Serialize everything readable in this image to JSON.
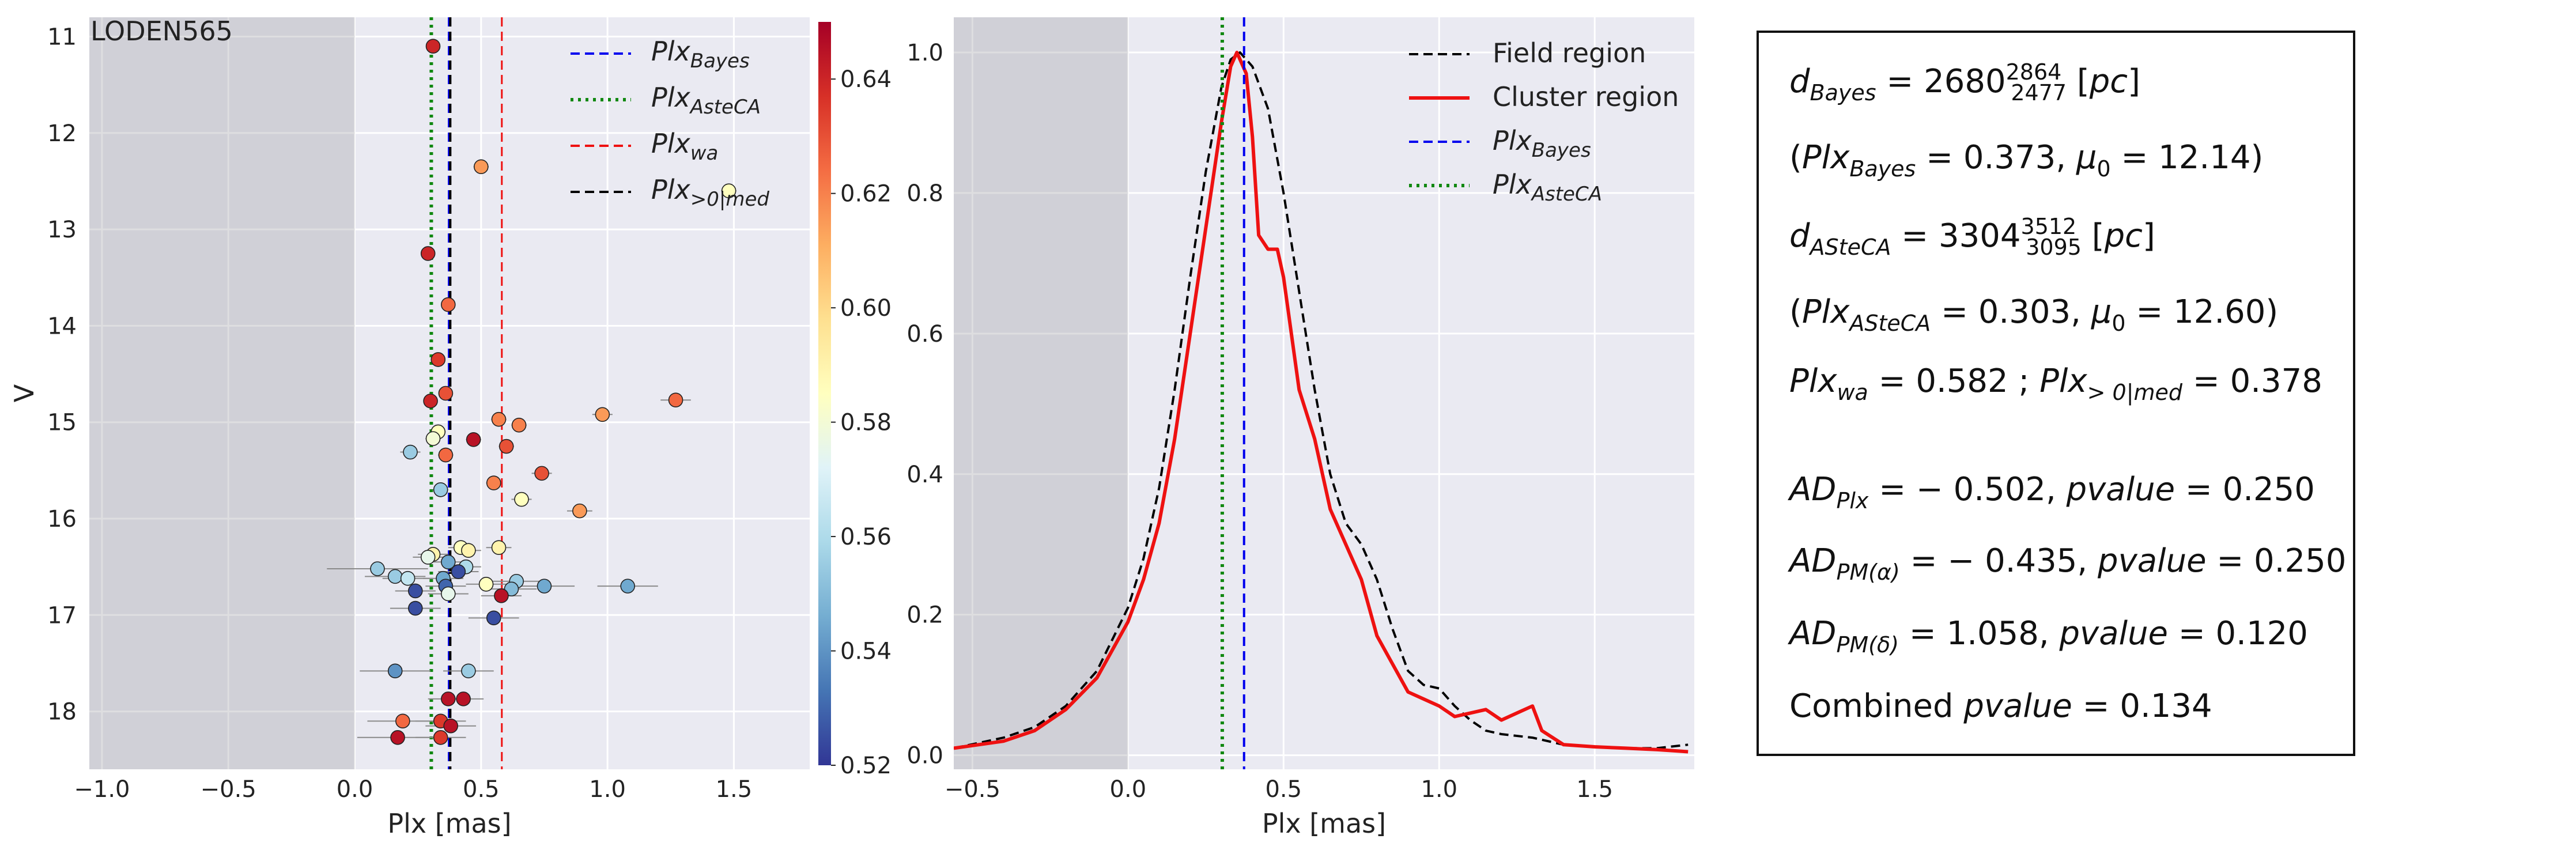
{
  "chart_data": [
    {
      "type": "scatter",
      "title": "LODEN565",
      "xlabel": "Plx [mas]",
      "ylabel": "V",
      "xlim": [
        -1.05,
        1.8
      ],
      "ylim": [
        18.6,
        10.8
      ],
      "xticks": [
        "−1.0",
        "−0.5",
        "0.0",
        "0.5",
        "1.0",
        "1.5"
      ],
      "xtick_values": [
        -1.0,
        -0.5,
        0.0,
        0.5,
        1.0,
        1.5
      ],
      "yticks": [
        "11",
        "12",
        "13",
        "14",
        "15",
        "16",
        "17",
        "18"
      ],
      "ytick_values": [
        11,
        12,
        13,
        14,
        15,
        16,
        17,
        18
      ],
      "shaded_region_x": [
        -1.05,
        0.0
      ],
      "grid": true,
      "vlines": [
        {
          "name": "Plx_Bayes",
          "x": 0.373,
          "style": "dashed",
          "color": "#0000ee"
        },
        {
          "name": "Plx_AsteCA",
          "x": 0.303,
          "style": "dotted",
          "color": "#118811"
        },
        {
          "name": "Plx_wa",
          "x": 0.582,
          "style": "dashed",
          "color": "#ee1111"
        },
        {
          "name": "Plx_>0|med",
          "x": 0.378,
          "style": "dashed",
          "color": "#000000"
        }
      ],
      "legend": [
        {
          "base": "Plx",
          "sub": "Bayes",
          "style": "dashed",
          "color": "#0000ee"
        },
        {
          "base": "Plx",
          "sub": "AsteCA",
          "style": "dotted",
          "color": "#118811"
        },
        {
          "base": "Plx",
          "sub": "wa",
          "style": "dashed",
          "color": "#ee1111"
        },
        {
          "base": "Plx",
          "sub": ">0|med",
          "style": "dashed",
          "color": "#000000"
        }
      ],
      "legend_position": "upper-right",
      "colorbar": {
        "min": 0.52,
        "max": 0.65,
        "ticks": [
          "0.52",
          "0.54",
          "0.56",
          "0.58",
          "0.60",
          "0.62",
          "0.64"
        ],
        "tick_values": [
          0.52,
          0.54,
          0.56,
          0.58,
          0.6,
          0.62,
          0.64
        ],
        "colormap": "RdYlBu_r"
      },
      "points": [
        {
          "x": 0.31,
          "y": 11.1,
          "c": 0.64,
          "xerr": 0.02
        },
        {
          "x": 0.5,
          "y": 12.35,
          "c": 0.615,
          "xerr": 0.03
        },
        {
          "x": 1.48,
          "y": 12.6,
          "c": 0.585,
          "xerr": 0.03
        },
        {
          "x": 0.29,
          "y": 13.25,
          "c": 0.64,
          "xerr": 0.02
        },
        {
          "x": 0.37,
          "y": 13.78,
          "c": 0.625,
          "xerr": 0.02
        },
        {
          "x": 0.33,
          "y": 14.35,
          "c": 0.635,
          "xerr": 0.02
        },
        {
          "x": 0.36,
          "y": 14.7,
          "c": 0.63,
          "xerr": 0.02
        },
        {
          "x": 0.3,
          "y": 14.78,
          "c": 0.64,
          "xerr": 0.02
        },
        {
          "x": 0.57,
          "y": 14.97,
          "c": 0.62,
          "xerr": 0.03
        },
        {
          "x": 0.98,
          "y": 14.92,
          "c": 0.615,
          "xerr": 0.04
        },
        {
          "x": 1.27,
          "y": 14.77,
          "c": 0.625,
          "xerr": 0.06
        },
        {
          "x": 0.65,
          "y": 15.03,
          "c": 0.62,
          "xerr": 0.03
        },
        {
          "x": 0.33,
          "y": 15.1,
          "c": 0.585,
          "xerr": 0.03
        },
        {
          "x": 0.31,
          "y": 15.17,
          "c": 0.58,
          "xerr": 0.03
        },
        {
          "x": 0.47,
          "y": 15.18,
          "c": 0.645,
          "xerr": 0.03
        },
        {
          "x": 0.6,
          "y": 15.25,
          "c": 0.63,
          "xerr": 0.03
        },
        {
          "x": 0.22,
          "y": 15.31,
          "c": 0.555,
          "xerr": 0.04
        },
        {
          "x": 0.36,
          "y": 15.34,
          "c": 0.625,
          "xerr": 0.03
        },
        {
          "x": 0.74,
          "y": 15.53,
          "c": 0.63,
          "xerr": 0.04
        },
        {
          "x": 0.55,
          "y": 15.63,
          "c": 0.62,
          "xerr": 0.03
        },
        {
          "x": 0.34,
          "y": 15.7,
          "c": 0.555,
          "xerr": 0.03
        },
        {
          "x": 0.66,
          "y": 15.8,
          "c": 0.585,
          "xerr": 0.04
        },
        {
          "x": 0.89,
          "y": 15.92,
          "c": 0.615,
          "xerr": 0.05
        },
        {
          "x": 0.57,
          "y": 16.3,
          "c": 0.59,
          "xerr": 0.05
        },
        {
          "x": 0.42,
          "y": 16.3,
          "c": 0.585,
          "xerr": 0.05
        },
        {
          "x": 0.45,
          "y": 16.33,
          "c": 0.59,
          "xerr": 0.05
        },
        {
          "x": 0.31,
          "y": 16.37,
          "c": 0.59,
          "xerr": 0.06
        },
        {
          "x": 0.29,
          "y": 16.4,
          "c": 0.575,
          "xerr": 0.06
        },
        {
          "x": 0.37,
          "y": 16.45,
          "c": 0.545,
          "xerr": 0.06
        },
        {
          "x": 0.44,
          "y": 16.5,
          "c": 0.56,
          "xerr": 0.06
        },
        {
          "x": 0.09,
          "y": 16.52,
          "c": 0.555,
          "xerr": 0.2
        },
        {
          "x": 0.16,
          "y": 16.6,
          "c": 0.555,
          "xerr": 0.12
        },
        {
          "x": 0.21,
          "y": 16.62,
          "c": 0.565,
          "xerr": 0.1
        },
        {
          "x": 0.35,
          "y": 16.62,
          "c": 0.545,
          "xerr": 0.08
        },
        {
          "x": 0.41,
          "y": 16.55,
          "c": 0.525,
          "xerr": 0.08
        },
        {
          "x": 0.52,
          "y": 16.68,
          "c": 0.585,
          "xerr": 0.08
        },
        {
          "x": 0.64,
          "y": 16.65,
          "c": 0.555,
          "xerr": 0.1
        },
        {
          "x": 0.36,
          "y": 16.7,
          "c": 0.53,
          "xerr": 0.08
        },
        {
          "x": 0.62,
          "y": 16.73,
          "c": 0.55,
          "xerr": 0.1
        },
        {
          "x": 0.75,
          "y": 16.7,
          "c": 0.545,
          "xerr": 0.12
        },
        {
          "x": 1.08,
          "y": 16.7,
          "c": 0.545,
          "xerr": 0.12
        },
        {
          "x": 0.24,
          "y": 16.75,
          "c": 0.525,
          "xerr": 0.08
        },
        {
          "x": 0.37,
          "y": 16.78,
          "c": 0.575,
          "xerr": 0.08
        },
        {
          "x": 0.58,
          "y": 16.8,
          "c": 0.645,
          "xerr": 0.08
        },
        {
          "x": 0.24,
          "y": 16.93,
          "c": 0.525,
          "xerr": 0.1
        },
        {
          "x": 0.55,
          "y": 17.03,
          "c": 0.525,
          "xerr": 0.1
        },
        {
          "x": 0.16,
          "y": 17.58,
          "c": 0.54,
          "xerr": 0.14
        },
        {
          "x": 0.45,
          "y": 17.58,
          "c": 0.555,
          "xerr": 0.1
        },
        {
          "x": 0.37,
          "y": 17.87,
          "c": 0.645,
          "xerr": 0.08
        },
        {
          "x": 0.43,
          "y": 17.87,
          "c": 0.645,
          "xerr": 0.08
        },
        {
          "x": 0.19,
          "y": 18.1,
          "c": 0.625,
          "xerr": 0.14
        },
        {
          "x": 0.34,
          "y": 18.1,
          "c": 0.635,
          "xerr": 0.1
        },
        {
          "x": 0.38,
          "y": 18.15,
          "c": 0.645,
          "xerr": 0.1
        },
        {
          "x": 0.17,
          "y": 18.27,
          "c": 0.645,
          "xerr": 0.16
        },
        {
          "x": 0.34,
          "y": 18.27,
          "c": 0.635,
          "xerr": 0.1
        }
      ]
    },
    {
      "type": "line",
      "xlabel": "Plx [mas]",
      "ylabel": "",
      "xlim": [
        -0.56,
        1.82
      ],
      "ylim": [
        -0.02,
        1.05
      ],
      "xticks": [
        "−0.5",
        "0.0",
        "0.5",
        "1.0",
        "1.5"
      ],
      "xtick_values": [
        -0.5,
        0.0,
        0.5,
        1.0,
        1.5
      ],
      "yticks": [
        "0.0",
        "0.2",
        "0.4",
        "0.6",
        "0.8",
        "1.0"
      ],
      "ytick_values": [
        0.0,
        0.2,
        0.4,
        0.6,
        0.8,
        1.0
      ],
      "shaded_region_x": [
        -0.56,
        0.0
      ],
      "grid": true,
      "legend_position": "upper-right",
      "legend": [
        {
          "label": "Field region",
          "style": "dashed",
          "color": "#000000"
        },
        {
          "label": "Cluster region",
          "style": "solid",
          "color": "#ee1111"
        },
        {
          "base": "Plx",
          "sub": "Bayes",
          "style": "dashed",
          "color": "#0000ee"
        },
        {
          "base": "Plx",
          "sub": "AsteCA",
          "style": "dotted",
          "color": "#118811"
        }
      ],
      "vlines": [
        {
          "x": 0.373,
          "style": "dashed",
          "color": "#0000ee"
        },
        {
          "x": 0.303,
          "style": "dotted",
          "color": "#118811"
        }
      ],
      "series": [
        {
          "name": "Field region",
          "style": "dashed",
          "color": "#000000",
          "x": [
            -0.56,
            -0.4,
            -0.3,
            -0.2,
            -0.1,
            0.0,
            0.05,
            0.1,
            0.15,
            0.2,
            0.25,
            0.3,
            0.33,
            0.36,
            0.4,
            0.45,
            0.5,
            0.55,
            0.6,
            0.65,
            0.7,
            0.75,
            0.8,
            0.85,
            0.9,
            0.95,
            1.0,
            1.05,
            1.1,
            1.15,
            1.2,
            1.3,
            1.4,
            1.5,
            1.6,
            1.7,
            1.8
          ],
          "y": [
            0.01,
            0.025,
            0.04,
            0.07,
            0.12,
            0.21,
            0.28,
            0.38,
            0.52,
            0.68,
            0.83,
            0.95,
            0.99,
            1.0,
            0.98,
            0.92,
            0.8,
            0.66,
            0.52,
            0.4,
            0.33,
            0.3,
            0.25,
            0.18,
            0.12,
            0.1,
            0.095,
            0.07,
            0.05,
            0.035,
            0.03,
            0.025,
            0.015,
            0.012,
            0.01,
            0.01,
            0.015
          ]
        },
        {
          "name": "Cluster region",
          "style": "solid",
          "color": "#ee1111",
          "x": [
            -0.56,
            -0.4,
            -0.3,
            -0.2,
            -0.1,
            0.0,
            0.05,
            0.1,
            0.15,
            0.2,
            0.25,
            0.3,
            0.33,
            0.35,
            0.38,
            0.4,
            0.42,
            0.45,
            0.48,
            0.5,
            0.55,
            0.6,
            0.65,
            0.7,
            0.75,
            0.8,
            0.85,
            0.9,
            0.95,
            1.0,
            1.05,
            1.1,
            1.15,
            1.2,
            1.25,
            1.3,
            1.33,
            1.4,
            1.5,
            1.6,
            1.7,
            1.8
          ],
          "y": [
            0.01,
            0.02,
            0.035,
            0.065,
            0.11,
            0.19,
            0.25,
            0.33,
            0.45,
            0.6,
            0.75,
            0.9,
            0.98,
            1.0,
            0.97,
            0.88,
            0.74,
            0.72,
            0.72,
            0.68,
            0.52,
            0.45,
            0.35,
            0.3,
            0.25,
            0.17,
            0.13,
            0.09,
            0.08,
            0.07,
            0.055,
            0.06,
            0.065,
            0.05,
            0.06,
            0.07,
            0.035,
            0.015,
            0.012,
            0.01,
            0.008,
            0.005
          ]
        }
      ]
    }
  ],
  "stats": [
    {
      "id": "d_bayes",
      "parts": [
        {
          "t": "d",
          "i": true
        },
        {
          "t": "Bayes",
          "i": true,
          "sub": true
        },
        {
          "t": " = 2680"
        },
        {
          "t": "2864",
          "sup": true
        },
        {
          "t": "2477",
          "sub": true
        },
        {
          "t": " ["
        },
        {
          "t": "pc",
          "i": true
        },
        {
          "t": "]"
        }
      ]
    },
    {
      "id": "plx_bayes",
      "parts": [
        {
          "t": "("
        },
        {
          "t": "Plx",
          "i": true
        },
        {
          "t": "Bayes",
          "i": true,
          "sub": true
        },
        {
          "t": " = 0.373, "
        },
        {
          "t": "μ",
          "i": true
        },
        {
          "t": "0",
          "sub": true
        },
        {
          "t": " = 12.14)"
        }
      ]
    },
    {
      "id": "d_asteca",
      "parts": [
        {
          "t": "d",
          "i": true
        },
        {
          "t": "ASteCA",
          "i": true,
          "sub": true
        },
        {
          "t": " = 3304"
        },
        {
          "t": "3512",
          "sup": true
        },
        {
          "t": "3095",
          "sub": true
        },
        {
          "t": " ["
        },
        {
          "t": "pc",
          "i": true
        },
        {
          "t": "]"
        }
      ]
    },
    {
      "id": "plx_asteca",
      "parts": [
        {
          "t": "("
        },
        {
          "t": "Plx",
          "i": true
        },
        {
          "t": "ASteCA",
          "i": true,
          "sub": true
        },
        {
          "t": " = 0.303, "
        },
        {
          "t": "μ",
          "i": true
        },
        {
          "t": "0",
          "sub": true
        },
        {
          "t": " = 12.60)"
        }
      ]
    },
    {
      "id": "plx_wa",
      "parts": [
        {
          "t": "Plx",
          "i": true
        },
        {
          "t": "wa",
          "i": true,
          "sub": true
        },
        {
          "t": " = 0.582 ; "
        },
        {
          "t": "Plx",
          "i": true
        },
        {
          "t": "> 0|med",
          "i": true,
          "sub": true
        },
        {
          "t": " = 0.378"
        }
      ]
    },
    {
      "id": "ad_plx",
      "parts": [
        {
          "t": "AD",
          "i": true
        },
        {
          "t": "Plx",
          "i": true,
          "sub": true
        },
        {
          "t": " = − 0.502, "
        },
        {
          "t": "pvalue",
          "i": true
        },
        {
          "t": " = 0.250"
        }
      ]
    },
    {
      "id": "ad_pma",
      "parts": [
        {
          "t": "AD",
          "i": true
        },
        {
          "t": "PM(α)",
          "i": true,
          "sub": true
        },
        {
          "t": " = − 0.435, "
        },
        {
          "t": "pvalue",
          "i": true
        },
        {
          "t": " = 0.250"
        }
      ]
    },
    {
      "id": "ad_pmd",
      "parts": [
        {
          "t": "AD",
          "i": true
        },
        {
          "t": "PM(δ)",
          "i": true,
          "sub": true
        },
        {
          "t": " = 1.058, "
        },
        {
          "t": "pvalue",
          "i": true
        },
        {
          "t": " = 0.120"
        }
      ]
    },
    {
      "id": "combined",
      "parts": [
        {
          "t": "Combined "
        },
        {
          "t": "pvalue",
          "i": true
        },
        {
          "t": " = 0.134"
        }
      ]
    }
  ]
}
